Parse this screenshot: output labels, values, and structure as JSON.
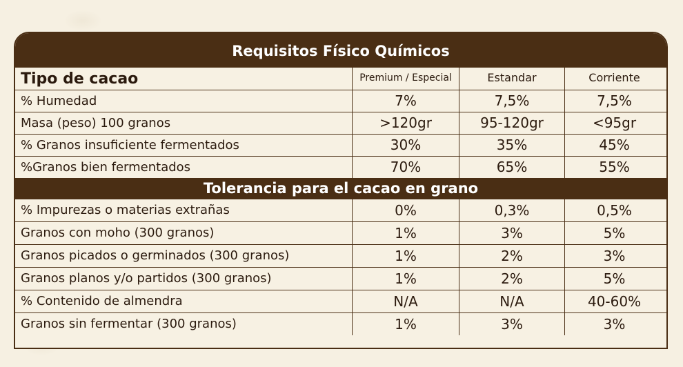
{
  "title": "Requisitos Físico Químicos",
  "header": {
    "label": "Tipo de cacao",
    "columns": [
      "Premium / Especial",
      "Estandar",
      "Corriente"
    ]
  },
  "section1_rows": [
    {
      "label": "% Humedad",
      "values": [
        "7%",
        "7,5%",
        "7,5%"
      ]
    },
    {
      "label": "Masa (peso) 100 granos",
      "values": [
        ">120gr",
        "95-120gr",
        "<95gr"
      ]
    },
    {
      "label": "% Granos insuficiente fermentados",
      "values": [
        "30%",
        "35%",
        "45%"
      ]
    },
    {
      "label": "%Granos bien fermentados",
      "values": [
        "70%",
        "65%",
        "55%"
      ]
    }
  ],
  "section2_title": "Tolerancia para el cacao en grano",
  "section2_rows": [
    {
      "label": "% Impurezas o materias extrañas",
      "values": [
        "0%",
        "0,3%",
        "0,5%"
      ]
    },
    {
      "label": "Granos con moho (300 granos)",
      "values": [
        "1%",
        "3%",
        "5%"
      ]
    },
    {
      "label": "Granos picados o germinados (300 granos)",
      "values": [
        "1%",
        "2%",
        "3%"
      ]
    },
    {
      "label": "Granos planos y/o partidos (300 granos)",
      "values": [
        "1%",
        "2%",
        "5%"
      ]
    },
    {
      "label": "% Contenido de almendra",
      "values": [
        "N/A",
        "N/A",
        "40-60%"
      ]
    },
    {
      "label": "Granos sin fermentar (300 granos)",
      "values": [
        "1%",
        "3%",
        "3%"
      ]
    }
  ],
  "colors": {
    "band": "#4a2e14",
    "background": "#f6f0e2"
  }
}
